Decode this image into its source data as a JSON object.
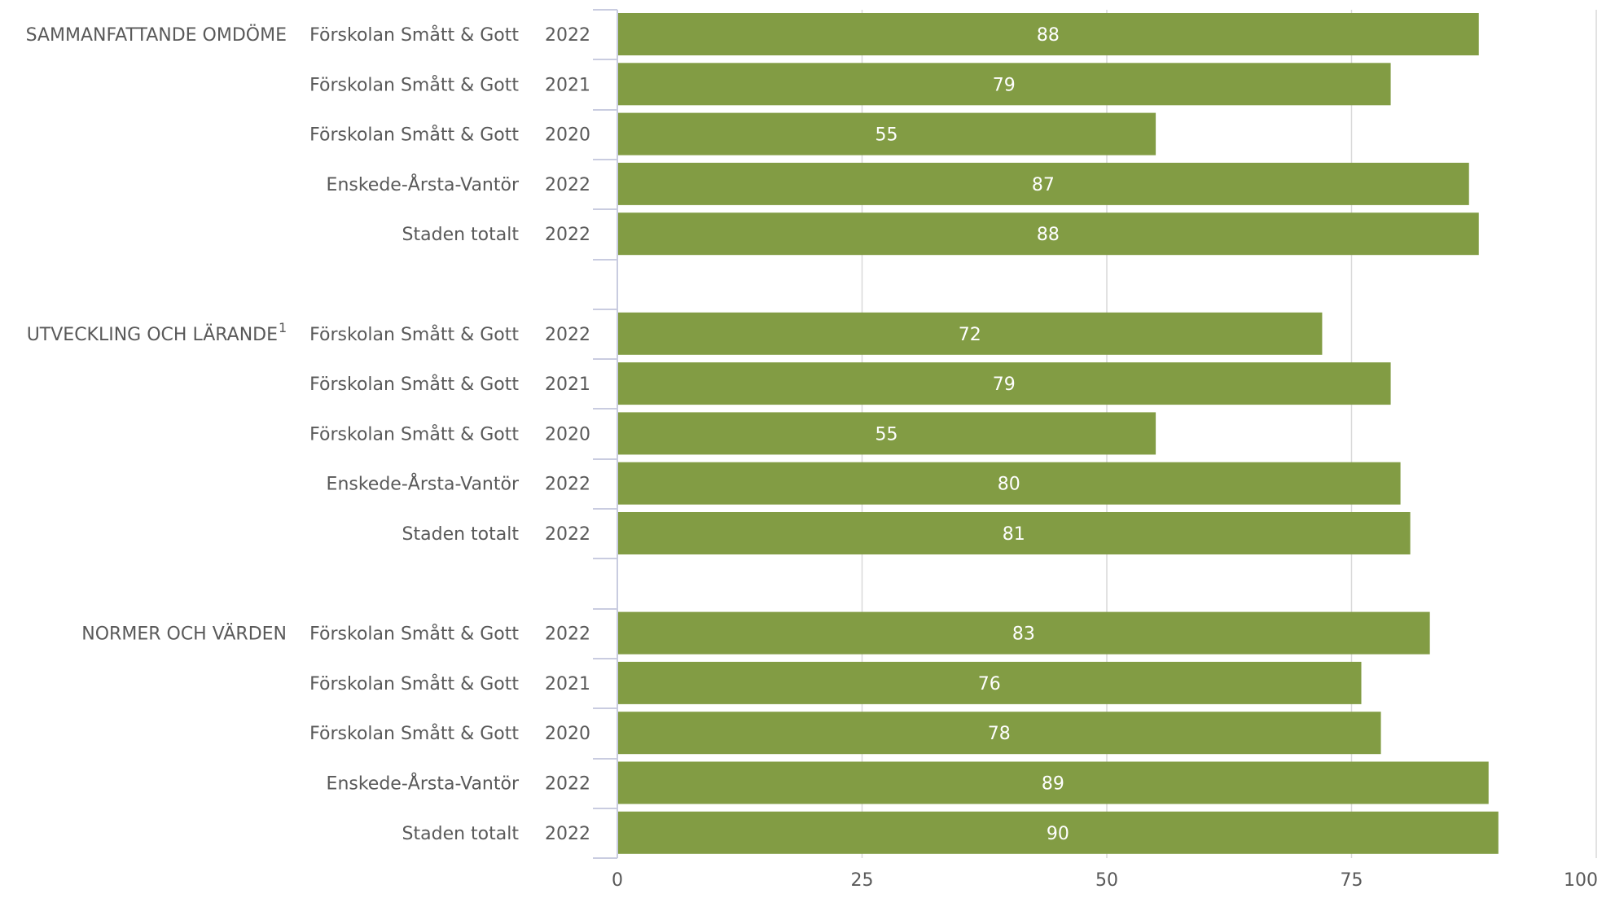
{
  "colors": {
    "bar": "#829C44",
    "grid": "#D9D9D9",
    "axis": "#C9CCE0",
    "text": "#595959",
    "value_text": "#FFFFFF"
  },
  "chart_data": {
    "type": "bar",
    "orientation": "horizontal",
    "xlim": [
      0,
      100
    ],
    "x_ticks": [
      "0",
      "25",
      "50",
      "75",
      "100"
    ],
    "grid": true,
    "legend": "none",
    "groups": [
      {
        "label": "SAMMANFATTANDE OMDÖME",
        "superscript": "",
        "rows": [
          {
            "name": "Förskolan Smått & Gott",
            "year": "2022",
            "value": 88
          },
          {
            "name": "Förskolan Smått & Gott",
            "year": "2021",
            "value": 79
          },
          {
            "name": "Förskolan Smått & Gott",
            "year": "2020",
            "value": 55
          },
          {
            "name": "Enskede-Årsta-Vantör",
            "year": "2022",
            "value": 87
          },
          {
            "name": "Staden totalt",
            "year": "2022",
            "value": 88
          }
        ]
      },
      {
        "label": "UTVECKLING OCH LÄRANDE",
        "superscript": "1",
        "rows": [
          {
            "name": "Förskolan Smått & Gott",
            "year": "2022",
            "value": 72
          },
          {
            "name": "Förskolan Smått & Gott",
            "year": "2021",
            "value": 79
          },
          {
            "name": "Förskolan Smått & Gott",
            "year": "2020",
            "value": 55
          },
          {
            "name": "Enskede-Årsta-Vantör",
            "year": "2022",
            "value": 80
          },
          {
            "name": "Staden totalt",
            "year": "2022",
            "value": 81
          }
        ]
      },
      {
        "label": "NORMER OCH VÄRDEN",
        "superscript": "",
        "rows": [
          {
            "name": "Förskolan Smått & Gott",
            "year": "2022",
            "value": 83
          },
          {
            "name": "Förskolan Smått & Gott",
            "year": "2021",
            "value": 76
          },
          {
            "name": "Förskolan Smått & Gott",
            "year": "2020",
            "value": 78
          },
          {
            "name": "Enskede-Årsta-Vantör",
            "year": "2022",
            "value": 89
          },
          {
            "name": "Staden totalt",
            "year": "2022",
            "value": 90
          }
        ]
      }
    ]
  }
}
